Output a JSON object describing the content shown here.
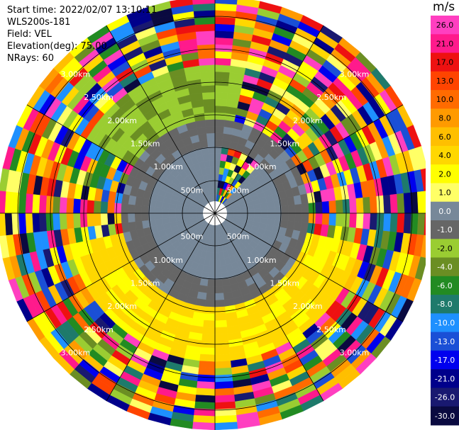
{
  "header": {
    "start_time": "Start time: 2022/02/07 13:10:11",
    "station": "WLS200s-181",
    "field": "Field: VEL",
    "elevation": "Elevation(deg): 75.00",
    "nrays": "NRays: 60"
  },
  "chart_data": {
    "type": "heatmap",
    "projection": "polar PPI",
    "field": "VEL",
    "units": "m/s",
    "elevation_deg": 75.0,
    "n_rays": 60,
    "range_rings": [
      "500m",
      "1.00km",
      "1.50km",
      "2.00km",
      "2.50km",
      "3.00km"
    ],
    "colorbar": {
      "unit_label": "m/s",
      "ticks": [
        "26.0",
        "21.0",
        "17.0",
        "13.0",
        "10.0",
        "8.0",
        "6.0",
        "4.0",
        "2.0",
        "1.0",
        "0.0",
        "-1.0",
        "-2.0",
        "-4.0",
        "-6.0",
        "-8.0",
        "-10.0",
        "-13.0",
        "-17.0",
        "-21.0",
        "-26.0",
        "-30.0"
      ],
      "colors": [
        "#ff3fc0",
        "#ff1a8c",
        "#ee1111",
        "#ff4400",
        "#ff6b00",
        "#ff9a00",
        "#ffbf00",
        "#ffd700",
        "#ffff00",
        "#ffff66",
        "#778899",
        "#666666",
        "#9acd32",
        "#6b8e23",
        "#228b22",
        "#1e7a6b",
        "#1e90ff",
        "#1a4fd6",
        "#0000ee",
        "#00008b",
        "#191970",
        "#0a0a40"
      ]
    }
  }
}
